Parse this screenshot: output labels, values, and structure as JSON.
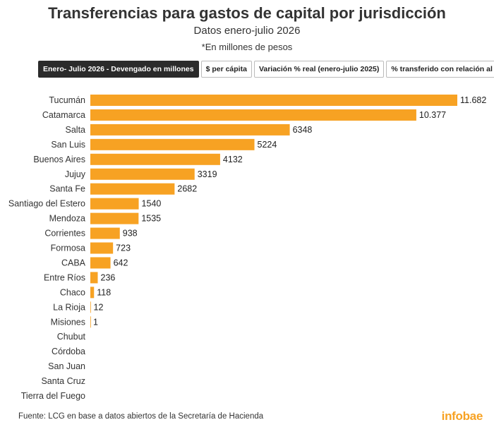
{
  "header": {
    "title": "Transferencias para gastos de capital por jurisdicción",
    "subtitle": "Datos enero-julio 2026",
    "note": "*En millones de pesos"
  },
  "tabs": [
    {
      "label": "Enero- Julio 2026 - Devengado en millones",
      "active": true
    },
    {
      "label": "$ per cápita",
      "active": false
    },
    {
      "label": "Variación % real (enero-julio 2025)",
      "active": false
    },
    {
      "label": "% transferido con relación al total",
      "active": false
    }
  ],
  "chart_data": {
    "type": "bar",
    "orientation": "horizontal",
    "categories": [
      "Tucumán",
      "Catamarca",
      "Salta",
      "San Luis",
      "Buenos Aires",
      "Jujuy",
      "Santa Fe",
      "Santiago del Estero",
      "Mendoza",
      "Corrientes",
      "Formosa",
      "CABA",
      "Entre Ríos",
      "Chaco",
      "La Rioja",
      "Misiones",
      "Chubut",
      "Córdoba",
      "San Juan",
      "Santa Cruz",
      "Tierra del Fuego"
    ],
    "values": [
      11682,
      10377,
      6348,
      5224,
      4132,
      3319,
      2682,
      1540,
      1535,
      938,
      723,
      642,
      236,
      118,
      12,
      1,
      0,
      0,
      0,
      0,
      0
    ],
    "value_labels": [
      "11.682",
      "10.377",
      "6348",
      "5224",
      "4132",
      "3319",
      "2682",
      "1540",
      "1535",
      "938",
      "723",
      "642",
      "236",
      "118",
      "12",
      "1",
      "",
      "",
      "",
      "",
      ""
    ],
    "xlim": [
      0,
      11682
    ],
    "grid": false,
    "bar_color": "#f7a223"
  },
  "footer": {
    "source": "Fuente: LCG en base a datos abiertos de la Secretaría de Hacienda",
    "brand": "infobae"
  }
}
